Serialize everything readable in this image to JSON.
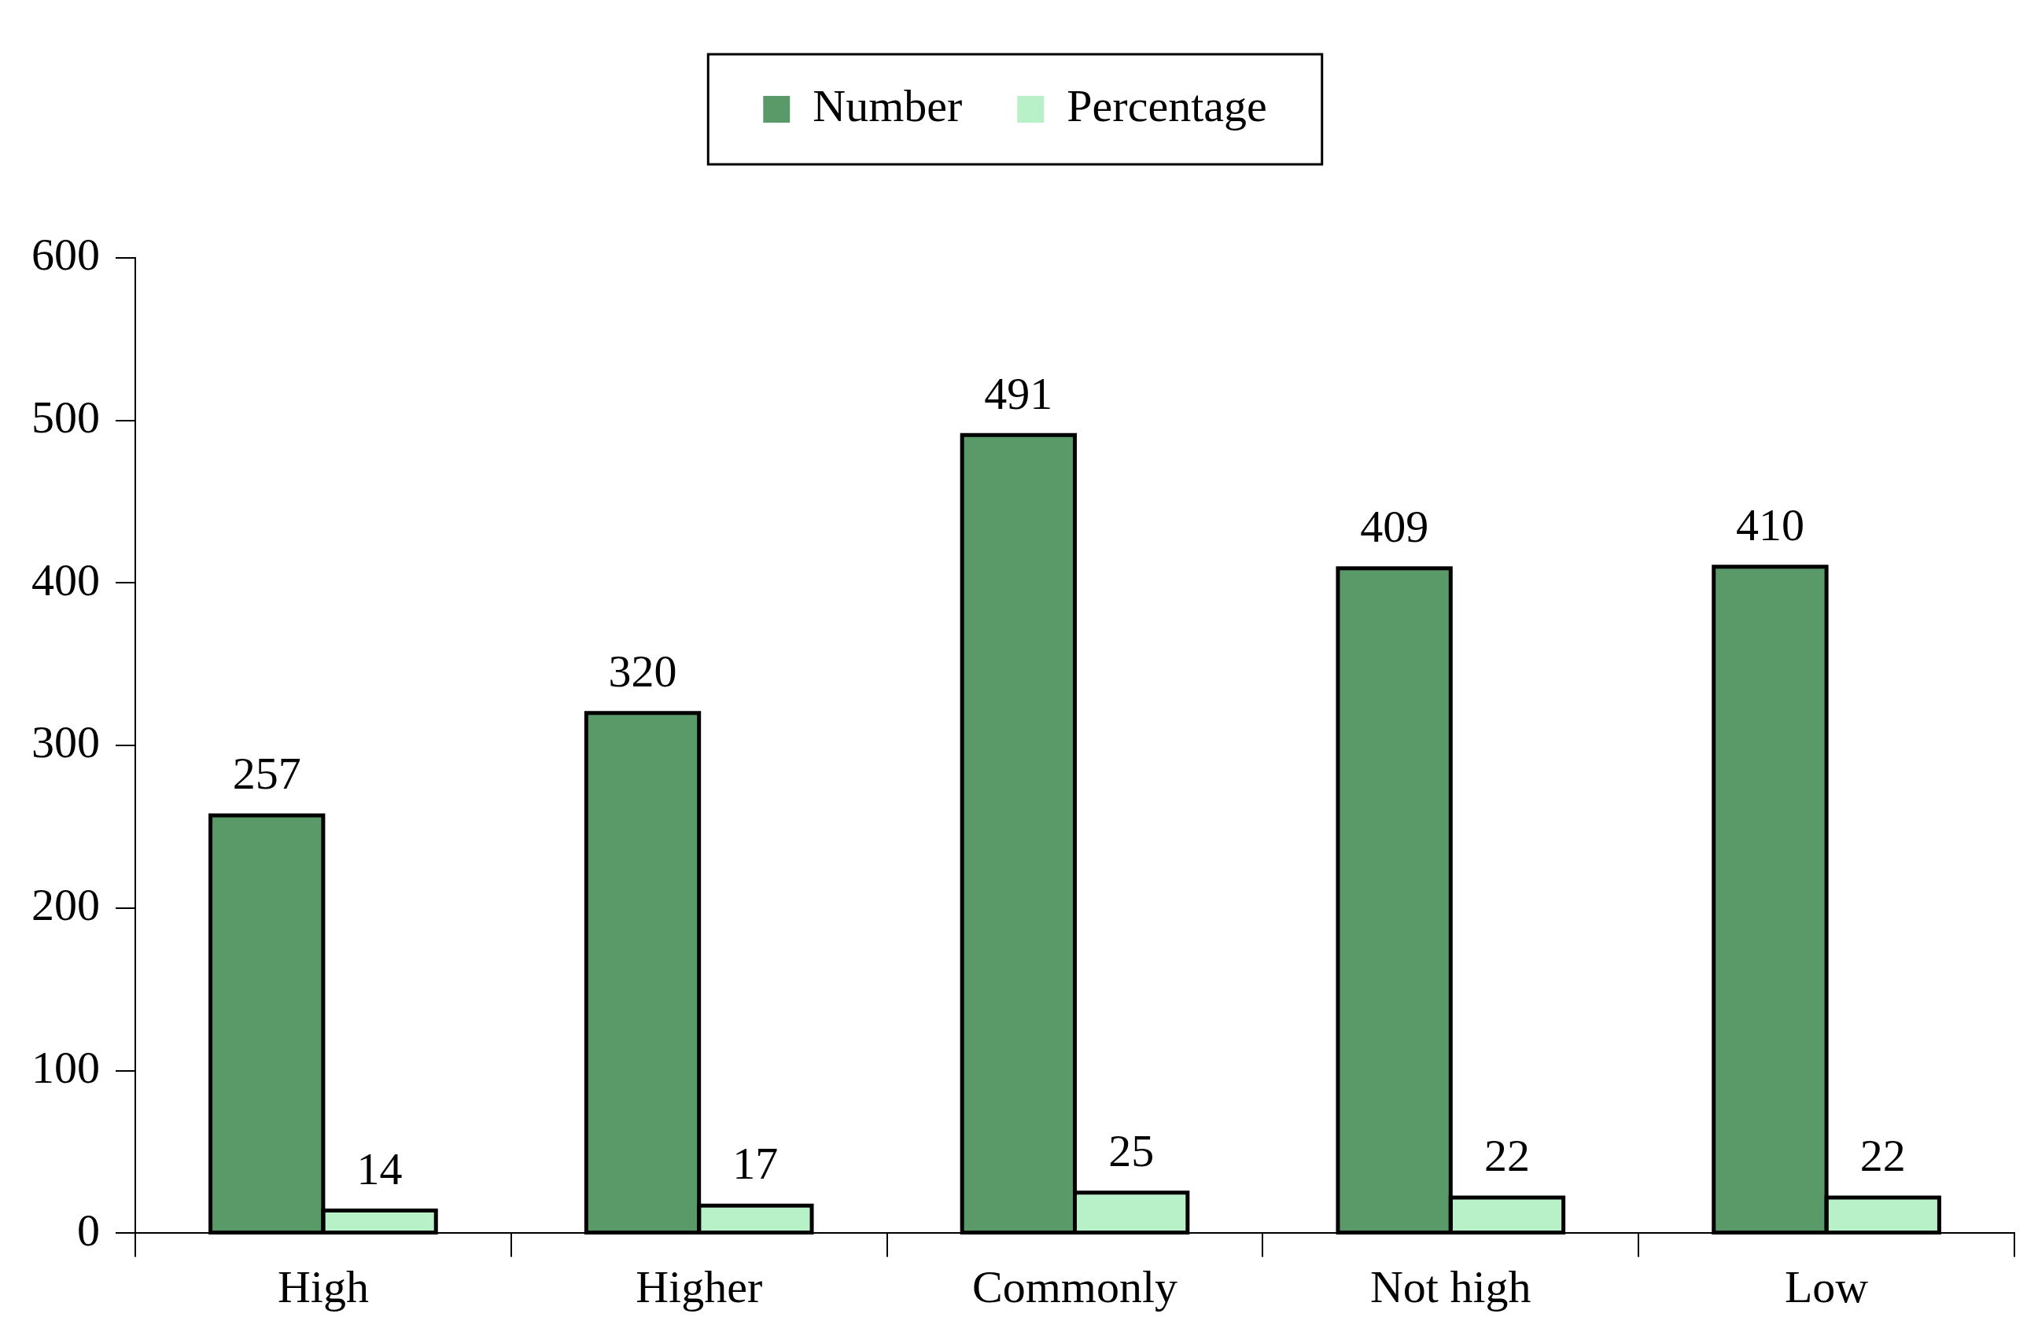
{
  "chart_data": {
    "type": "bar",
    "categories": [
      "High",
      "Higher",
      "Commonly",
      "Not high",
      "Low"
    ],
    "series": [
      {
        "name": "Number",
        "color": "#5a9a68",
        "values": [
          257,
          320,
          491,
          409,
          410
        ]
      },
      {
        "name": "Percentage",
        "color": "#b8f0c8",
        "values": [
          14,
          17,
          25,
          22,
          22
        ]
      }
    ],
    "ylim": [
      0,
      600
    ],
    "yticks": [
      0,
      100,
      200,
      300,
      400,
      500,
      600
    ],
    "grid": false,
    "legend": "top",
    "data_labels": true
  }
}
